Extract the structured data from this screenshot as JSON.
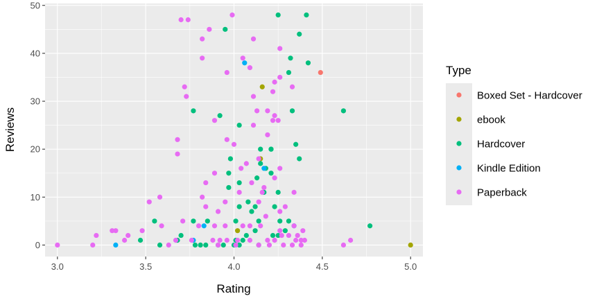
{
  "chart_data": {
    "type": "scatter",
    "xlabel": "Rating",
    "ylabel": "Reviews",
    "xlim": [
      2.93,
      5.07
    ],
    "ylim": [
      -2.4,
      50.4
    ],
    "x_ticks": [
      "3.0",
      "3.5",
      "4.0",
      "4.5",
      "5.0"
    ],
    "y_ticks": [
      "0",
      "10",
      "20",
      "30",
      "40",
      "50"
    ],
    "grid": true,
    "legend": {
      "title": "Type",
      "position": "right"
    },
    "series": [
      {
        "name": "Boxed Set - Hardcover",
        "color": "#F8766D",
        "points": [
          [
            4.49,
            36
          ]
        ]
      },
      {
        "name": "ebook",
        "color": "#A3A500",
        "points": [
          [
            4.16,
            33
          ],
          [
            4.15,
            18
          ],
          [
            4.02,
            3
          ],
          [
            5.0,
            0
          ]
        ]
      },
      {
        "name": "Hardcover",
        "color": "#00BF7D",
        "points": [
          [
            4.25,
            48
          ],
          [
            4.41,
            48
          ],
          [
            3.95,
            45
          ],
          [
            4.37,
            44
          ],
          [
            4.32,
            39
          ],
          [
            4.42,
            38
          ],
          [
            4.31,
            36
          ],
          [
            3.77,
            28
          ],
          [
            4.33,
            28
          ],
          [
            4.62,
            28
          ],
          [
            3.92,
            27
          ],
          [
            4.03,
            25
          ],
          [
            4.35,
            21
          ],
          [
            4.15,
            20
          ],
          [
            4.21,
            20
          ],
          [
            3.98,
            18
          ],
          [
            4.15,
            17
          ],
          [
            4.37,
            18
          ],
          [
            4.18,
            16
          ],
          [
            4.21,
            15
          ],
          [
            3.97,
            15
          ],
          [
            4.13,
            14
          ],
          [
            3.97,
            12
          ],
          [
            4.03,
            13
          ],
          [
            4.17,
            11
          ],
          [
            4.25,
            11
          ],
          [
            4.08,
            9
          ],
          [
            4.03,
            8
          ],
          [
            4.12,
            8
          ],
          [
            4.23,
            8
          ],
          [
            4.1,
            7
          ],
          [
            3.55,
            5
          ],
          [
            3.77,
            5
          ],
          [
            3.85,
            5
          ],
          [
            4.01,
            5
          ],
          [
            4.14,
            5
          ],
          [
            4.26,
            5
          ],
          [
            4.31,
            5
          ],
          [
            3.68,
            1
          ],
          [
            3.7,
            2
          ],
          [
            3.47,
            1
          ],
          [
            3.78,
            0
          ],
          [
            3.81,
            0
          ],
          [
            3.84,
            0
          ],
          [
            3.91,
            0
          ],
          [
            3.94,
            0
          ],
          [
            4.01,
            1
          ],
          [
            4.07,
            2
          ],
          [
            4.05,
            1
          ],
          [
            4.12,
            3
          ],
          [
            4.22,
            2
          ],
          [
            4.25,
            2
          ],
          [
            4.29,
            3
          ],
          [
            4.0,
            0
          ],
          [
            4.03,
            0
          ],
          [
            4.14,
            0
          ],
          [
            4.77,
            4
          ],
          [
            3.58,
            0
          ],
          [
            4.21,
            20
          ]
        ]
      },
      {
        "name": "Kindle Edition",
        "color": "#00B0F6",
        "points": [
          [
            4.06,
            38
          ],
          [
            4.17,
            16
          ],
          [
            4.34,
            4
          ],
          [
            3.83,
            4
          ],
          [
            3.77,
            1
          ],
          [
            3.33,
            0
          ]
        ]
      },
      {
        "name": "Paperback",
        "color": "#E76BF3",
        "points": [
          [
            3.99,
            48
          ],
          [
            3.7,
            47
          ],
          [
            3.74,
            47
          ],
          [
            3.86,
            45
          ],
          [
            4.11,
            43
          ],
          [
            3.82,
            43
          ],
          [
            4.26,
            41
          ],
          [
            4.05,
            39
          ],
          [
            3.82,
            39
          ],
          [
            4.09,
            37
          ],
          [
            3.96,
            36
          ],
          [
            4.26,
            35
          ],
          [
            4.23,
            34
          ],
          [
            4.22,
            32
          ],
          [
            4.33,
            33
          ],
          [
            3.72,
            33
          ],
          [
            3.73,
            31
          ],
          [
            4.11,
            31
          ],
          [
            4.13,
            28
          ],
          [
            4.19,
            28
          ],
          [
            4.23,
            27
          ],
          [
            4.22,
            26
          ],
          [
            4.25,
            26
          ],
          [
            3.89,
            26
          ],
          [
            4.11,
            25
          ],
          [
            4.19,
            23
          ],
          [
            3.68,
            22
          ],
          [
            3.96,
            22
          ],
          [
            4.0,
            21
          ],
          [
            3.68,
            19
          ],
          [
            4.14,
            18
          ],
          [
            4.07,
            17
          ],
          [
            4.26,
            16
          ],
          [
            3.89,
            15
          ],
          [
            4.04,
            16
          ],
          [
            4.23,
            14
          ],
          [
            3.84,
            13
          ],
          [
            4.1,
            13
          ],
          [
            4.17,
            12
          ],
          [
            3.82,
            10
          ],
          [
            4.03,
            11
          ],
          [
            4.16,
            11
          ],
          [
            3.58,
            10
          ],
          [
            4.34,
            11
          ],
          [
            3.52,
            9
          ],
          [
            3.95,
            9
          ],
          [
            4.14,
            9
          ],
          [
            4.29,
            8
          ],
          [
            3.84,
            8
          ],
          [
            4.26,
            7
          ],
          [
            3.91,
            7
          ],
          [
            4.18,
            6
          ],
          [
            3.59,
            4
          ],
          [
            3.71,
            5
          ],
          [
            3.8,
            4
          ],
          [
            3.89,
            4
          ],
          [
            3.95,
            4
          ],
          [
            4.05,
            4
          ],
          [
            4.09,
            4
          ],
          [
            4.15,
            4
          ],
          [
            4.26,
            3
          ],
          [
            4.34,
            4
          ],
          [
            4.39,
            3
          ],
          [
            3.4,
            2
          ],
          [
            3.22,
            2
          ],
          [
            3.48,
            3
          ],
          [
            3.33,
            3
          ],
          [
            3.38,
            1
          ],
          [
            3.2,
            0
          ],
          [
            3.0,
            0
          ],
          [
            3.67,
            1
          ],
          [
            3.88,
            1
          ],
          [
            3.92,
            1
          ],
          [
            3.96,
            1
          ],
          [
            4.02,
            1
          ],
          [
            4.09,
            1
          ],
          [
            4.19,
            1
          ],
          [
            4.27,
            2
          ],
          [
            4.31,
            2
          ],
          [
            4.35,
            1
          ],
          [
            4.38,
            1
          ],
          [
            4.4,
            1
          ],
          [
            4.66,
            1
          ],
          [
            3.91,
            0
          ],
          [
            4.01,
            0
          ],
          [
            4.14,
            0
          ],
          [
            4.2,
            0
          ],
          [
            4.28,
            0
          ],
          [
            4.33,
            0
          ],
          [
            4.38,
            0
          ],
          [
            4.62,
            0
          ],
          [
            3.63,
            0
          ],
          [
            3.76,
            1
          ],
          [
            4.23,
            1
          ],
          [
            3.31,
            3
          ],
          [
            4.36,
            2
          ]
        ]
      }
    ]
  }
}
